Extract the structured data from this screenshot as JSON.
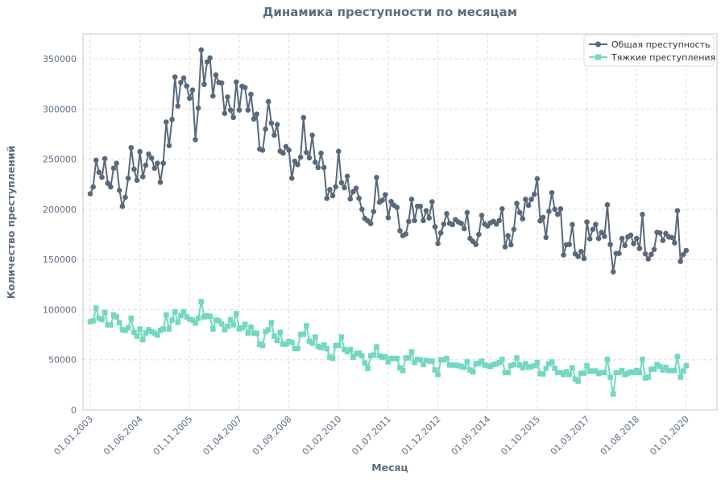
{
  "chart_data": {
    "type": "line",
    "title": "Динамика преступности по месяцам",
    "xlabel": "Месяц",
    "ylabel": "Количество преступлений",
    "x_start": "01.01.2003",
    "x_frequency": "monthly",
    "x_tick_labels": [
      "01.01.2003",
      "01.06.2004",
      "01.11.2005",
      "01.04.2007",
      "01.09.2008",
      "01.02.2010",
      "01.07.2011",
      "01.12.2012",
      "01.05.2014",
      "01.10.2015",
      "01.03.2017",
      "01.08.2018",
      "01.01.2020"
    ],
    "y_ticks": [
      0,
      50000,
      100000,
      150000,
      200000,
      250000,
      300000,
      350000
    ],
    "ylim": [
      0,
      375000
    ],
    "grid": true,
    "legend_position": "top-right",
    "series": [
      {
        "name": "Общая преступность",
        "color": "#59697c",
        "marker": "circle",
        "values": [
          215500,
          222400,
          249000,
          237000,
          232000,
          250500,
          226000,
          222400,
          241000,
          246000,
          219000,
          203000,
          212000,
          231000,
          261500,
          240000,
          229000,
          257500,
          232500,
          244000,
          255000,
          251000,
          241000,
          246000,
          227000,
          246000,
          287000,
          263600,
          289600,
          332000,
          303000,
          326500,
          331000,
          323000,
          310700,
          319000,
          269500,
          301000,
          359000,
          324600,
          347000,
          351000,
          313000,
          334000,
          326500,
          326000,
          295700,
          312000,
          299000,
          291700,
          327000,
          299000,
          322700,
          321400,
          299000,
          314700,
          290000,
          295000,
          260000,
          259000,
          280000,
          307500,
          286000,
          274000,
          284500,
          258000,
          256000,
          262600,
          259000,
          231000,
          248000,
          244600,
          252000,
          291400,
          256700,
          251300,
          274000,
          247000,
          241700,
          256000,
          241700,
          211000,
          219800,
          213600,
          222500,
          257800,
          226500,
          221600,
          233000,
          210400,
          217600,
          221000,
          211000,
          200000,
          190900,
          188500,
          185800,
          197800,
          231800,
          207000,
          209000,
          214600,
          191700,
          207700,
          204000,
          202000,
          178600,
          173800,
          175400,
          188000,
          210000,
          188800,
          203000,
          203000,
          188800,
          198700,
          191400,
          207500,
          182600,
          166000,
          176500,
          185300,
          195700,
          186000,
          184800,
          189800,
          187400,
          186000,
          180700,
          196800,
          171000,
          168000,
          165000,
          175000,
          194000,
          185300,
          183400,
          186600,
          188000,
          185300,
          188800,
          200500,
          162600,
          173800,
          164700,
          180000,
          205900,
          196800,
          190600,
          210000,
          204000,
          210000,
          215000,
          230500,
          188500,
          192000,
          172000,
          198000,
          216600,
          200000,
          195000,
          200500,
          154500,
          164700,
          165000,
          184800,
          155600,
          153000,
          158000,
          151000,
          187400,
          170600,
          180000,
          185000,
          171000,
          177000,
          173000,
          204500,
          165000,
          137700,
          156000,
          156000,
          171000,
          164000,
          172500,
          174300,
          165800,
          171000,
          161000,
          195000,
          155600,
          150500,
          155000,
          160000,
          177000,
          176500,
          169000,
          176000,
          172500,
          172000,
          166600,
          198700,
          148000,
          155000,
          159000
        ]
      },
      {
        "name": "Тяжкие преступления",
        "color": "#72d8c1",
        "marker": "square",
        "values": [
          88000,
          88800,
          101600,
          91400,
          90000,
          97300,
          84800,
          84800,
          94700,
          92800,
          87000,
          80000,
          79400,
          82000,
          91400,
          77300,
          73500,
          80700,
          70000,
          76700,
          80000,
          78000,
          76700,
          74600,
          79400,
          80700,
          94700,
          80700,
          89600,
          98000,
          87400,
          94000,
          98000,
          92800,
          90600,
          89600,
          86600,
          91400,
          108000,
          92800,
          94000,
          93300,
          80700,
          89600,
          88800,
          85600,
          80000,
          83400,
          90000,
          84800,
          96000,
          80700,
          82000,
          85300,
          76700,
          82600,
          76700,
          76200,
          65500,
          64200,
          78000,
          80000,
          87000,
          73500,
          69200,
          77300,
          65500,
          65500,
          68200,
          67400,
          61200,
          61200,
          75400,
          75400,
          84000,
          68700,
          66600,
          72700,
          63400,
          62000,
          64700,
          61200,
          52600,
          51300,
          64200,
          64200,
          72700,
          60200,
          58000,
          60200,
          52600,
          55900,
          56700,
          54000,
          46800,
          41400,
          54000,
          54800,
          62800,
          54000,
          52600,
          53200,
          47900,
          51300,
          51300,
          51300,
          42000,
          39300,
          51900,
          51900,
          58000,
          47300,
          50500,
          50000,
          45200,
          49500,
          48700,
          48700,
          39800,
          35300,
          50000,
          50000,
          51300,
          44700,
          44700,
          44700,
          44100,
          43300,
          42500,
          48100,
          39800,
          38000,
          46000,
          46500,
          48700,
          44700,
          44100,
          43300,
          45200,
          46000,
          47300,
          50500,
          37200,
          37200,
          44100,
          45200,
          51900,
          44700,
          42000,
          46000,
          42500,
          43300,
          44100,
          47300,
          36100,
          35800,
          41400,
          46000,
          47900,
          41400,
          37200,
          37200,
          35300,
          38000,
          35300,
          42000,
          30700,
          28600,
          36600,
          36600,
          44100,
          38800,
          38800,
          38800,
          36100,
          37200,
          37200,
          50500,
          32600,
          15800,
          37200,
          37200,
          39300,
          35300,
          36600,
          38000,
          37200,
          39300,
          37200,
          50500,
          31800,
          32600,
          40600,
          40600,
          45200,
          43300,
          39800,
          42500,
          39300,
          39300,
          39300,
          53200,
          32600,
          38800,
          44100
        ]
      }
    ]
  }
}
